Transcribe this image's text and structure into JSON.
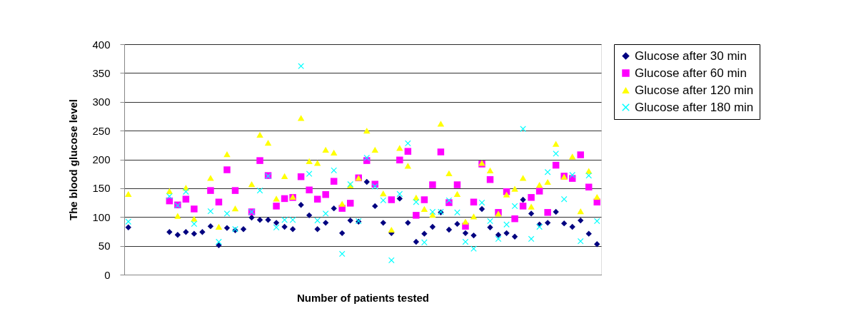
{
  "chart_data": {
    "type": "scatter",
    "xlabel": "Number of patients tested",
    "ylabel": "The blood glucose level",
    "categories": [
      null,
      null,
      null,
      null,
      null,
      null,
      null,
      null,
      null,
      null,
      null,
      null,
      null,
      null,
      null,
      null,
      null,
      null,
      null,
      null,
      null,
      null,
      null,
      null,
      null,
      null,
      null,
      null,
      null,
      null,
      null,
      null,
      null,
      null,
      null,
      null,
      null,
      null,
      null,
      null,
      null,
      null,
      null,
      null,
      null,
      null,
      null,
      null,
      null,
      null,
      null,
      null,
      null,
      null,
      null,
      null,
      null,
      null
    ],
    "ylim": [
      0,
      400
    ],
    "yticks": [
      0,
      50,
      100,
      150,
      200,
      250,
      300,
      350,
      400
    ],
    "grid": "y",
    "legend": "right",
    "tick_labels": "y",
    "series": [
      {
        "name": "Glucose after 30 min",
        "color": "#000080",
        "marker": "diamond",
        "values": [
          82,
          null,
          null,
          null,
          null,
          74,
          69,
          74,
          71,
          74,
          84,
          51,
          81,
          77,
          79,
          99,
          95,
          95,
          90,
          83,
          79,
          121,
          103,
          79,
          90,
          115,
          72,
          94,
          92,
          161,
          119,
          90,
          72,
          132,
          90,
          57,
          71,
          83,
          108,
          78,
          88,
          72,
          68,
          114,
          82,
          69,
          72,
          66,
          130,
          106,
          87,
          90,
          109,
          89,
          83,
          94,
          71,
          53
        ]
      },
      {
        "name": "Glucose after 60 min",
        "color": "#ff00ff",
        "marker": "square",
        "values": [
          null,
          null,
          null,
          null,
          null,
          128,
          121,
          131,
          114,
          null,
          146,
          126,
          182,
          146,
          null,
          109,
          198,
          172,
          119,
          132,
          134,
          170,
          147,
          131,
          139,
          162,
          115,
          124,
          168,
          198,
          157,
          null,
          130,
          199,
          214,
          103,
          130,
          156,
          213,
          125,
          156,
          84,
          126,
          192,
          165,
          108,
          144,
          97,
          119,
          134,
          145,
          108,
          190,
          171,
          167,
          208,
          152,
          126
        ]
      },
      {
        "name": "Glucose after 120 min",
        "color": "#ffff00",
        "marker": "triangle",
        "values": [
          140,
          null,
          null,
          null,
          null,
          145,
          102,
          151,
          97,
          null,
          168,
          83,
          209,
          115,
          null,
          157,
          243,
          229,
          132,
          171,
          135,
          272,
          197,
          194,
          217,
          212,
          123,
          155,
          168,
          250,
          217,
          141,
          78,
          220,
          189,
          134,
          114,
          104,
          262,
          176,
          140,
          92,
          101,
          194,
          181,
          106,
          139,
          149,
          168,
          118,
          156,
          161,
          227,
          170,
          205,
          110,
          180,
          135
        ]
      },
      {
        "name": "Glucose after 180 min",
        "color": "#00ffff",
        "marker": "cross",
        "values": [
          92,
          null,
          null,
          null,
          null,
          136,
          120,
          144,
          88,
          null,
          110,
          57,
          106,
          79,
          null,
          109,
          146,
          171,
          82,
          95,
          95,
          362,
          175,
          94,
          106,
          181,
          36,
          157,
          93,
          203,
          153,
          129,
          25,
          140,
          228,
          126,
          56,
          109,
          109,
          129,
          108,
          57,
          45,
          125,
          93,
          62,
          87,
          119,
          253,
          62,
          83,
          178,
          210,
          131,
          173,
          58,
          172,
          93
        ]
      }
    ]
  }
}
